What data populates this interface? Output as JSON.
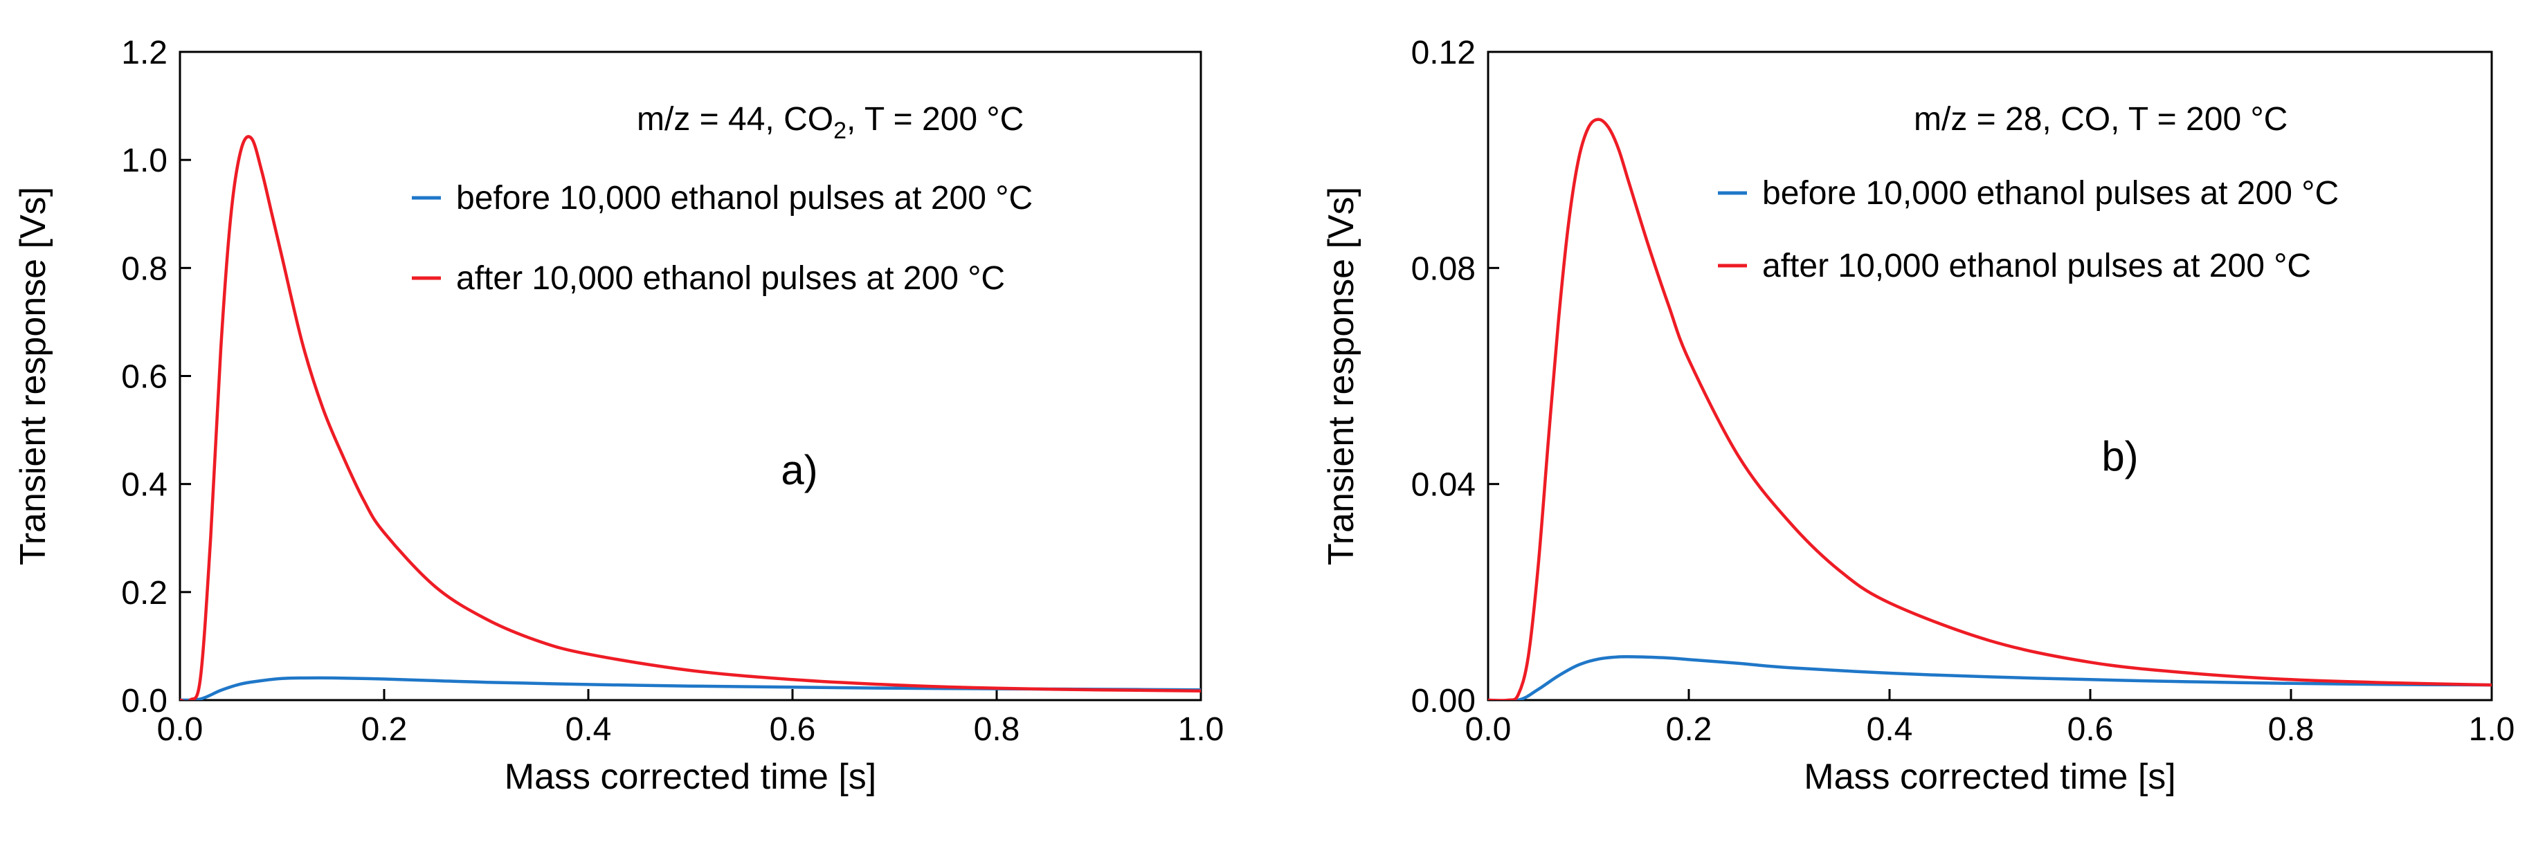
{
  "chart_data": [
    {
      "type": "line",
      "panel_label": "a)",
      "annotation": {
        "prefix": "m/z = 44, CO",
        "subscript": "2",
        "suffix": ", T = 200 °C"
      },
      "xlabel": "Mass corrected time [s]",
      "ylabel": "Transient response [Vs]",
      "xlim": [
        0,
        1.0
      ],
      "ylim": [
        0,
        1.2
      ],
      "xticks": [
        "0.0",
        "0.2",
        "0.4",
        "0.6",
        "0.8",
        "1.0"
      ],
      "yticks": [
        "0.0",
        "0.2",
        "0.4",
        "0.6",
        "0.8",
        "1.0",
        "1.2"
      ],
      "grid": false,
      "legend_position": "top-right",
      "series": [
        {
          "name": "before 10,000 ethanol pulses at 200 °C",
          "color": "#1f77c8",
          "x": [
            0.0,
            0.02,
            0.04,
            0.06,
            0.08,
            0.1,
            0.12,
            0.15,
            0.2,
            0.25,
            0.3,
            0.4,
            0.5,
            0.6,
            0.7,
            0.8,
            0.9,
            1.0
          ],
          "y": [
            0.0,
            0.002,
            0.018,
            0.03,
            0.036,
            0.04,
            0.041,
            0.041,
            0.039,
            0.036,
            0.033,
            0.029,
            0.026,
            0.024,
            0.022,
            0.021,
            0.02,
            0.019
          ]
        },
        {
          "name": "after 10,000 ethanol pulses at 200 °C",
          "color": "#ee1c25",
          "x": [
            0.0,
            0.01,
            0.02,
            0.03,
            0.04,
            0.05,
            0.06,
            0.07,
            0.08,
            0.09,
            0.1,
            0.12,
            0.14,
            0.16,
            0.18,
            0.2,
            0.25,
            0.3,
            0.35,
            0.4,
            0.5,
            0.6,
            0.7,
            0.8,
            0.9,
            1.0
          ],
          "y": [
            0.0,
            0.0,
            0.04,
            0.3,
            0.65,
            0.9,
            1.02,
            1.04,
            0.98,
            0.9,
            0.82,
            0.66,
            0.54,
            0.45,
            0.37,
            0.31,
            0.21,
            0.15,
            0.11,
            0.085,
            0.055,
            0.038,
            0.028,
            0.022,
            0.019,
            0.017
          ]
        }
      ]
    },
    {
      "type": "line",
      "panel_label": "b)",
      "annotation": {
        "prefix": "m/z = 28, CO, T = 200 °C",
        "subscript": "",
        "suffix": ""
      },
      "xlabel": "Mass corrected time [s]",
      "ylabel": "Transient response [Vs]",
      "xlim": [
        0,
        1.0
      ],
      "ylim": [
        0,
        0.12
      ],
      "xticks": [
        "0.0",
        "0.2",
        "0.4",
        "0.6",
        "0.8",
        "1.0"
      ],
      "yticks": [
        "0.00",
        "0.04",
        "0.08",
        "0.12"
      ],
      "grid": false,
      "legend_position": "top-right",
      "series": [
        {
          "name": "before 10,000 ethanol pulses at 200 °C",
          "color": "#1f77c8",
          "x": [
            0.0,
            0.03,
            0.05,
            0.07,
            0.09,
            0.11,
            0.13,
            0.15,
            0.18,
            0.2,
            0.25,
            0.3,
            0.4,
            0.5,
            0.6,
            0.7,
            0.8,
            0.9,
            1.0
          ],
          "y": [
            0.0,
            0.0,
            0.002,
            0.0045,
            0.0065,
            0.0076,
            0.008,
            0.008,
            0.0078,
            0.0075,
            0.0068,
            0.006,
            0.005,
            0.0043,
            0.0038,
            0.0034,
            0.0031,
            0.0029,
            0.0028
          ]
        },
        {
          "name": "after 10,000 ethanol pulses at 200 °C",
          "color": "#ee1c25",
          "x": [
            0.0,
            0.02,
            0.03,
            0.04,
            0.05,
            0.06,
            0.07,
            0.08,
            0.09,
            0.1,
            0.11,
            0.12,
            0.13,
            0.14,
            0.16,
            0.18,
            0.2,
            0.25,
            0.3,
            0.35,
            0.4,
            0.5,
            0.6,
            0.7,
            0.8,
            0.9,
            1.0
          ],
          "y": [
            0.0,
            0.0,
            0.001,
            0.008,
            0.025,
            0.048,
            0.07,
            0.088,
            0.1,
            0.106,
            0.1075,
            0.106,
            0.102,
            0.096,
            0.084,
            0.073,
            0.063,
            0.045,
            0.033,
            0.024,
            0.018,
            0.011,
            0.007,
            0.005,
            0.0038,
            0.0032,
            0.0028
          ]
        }
      ]
    }
  ]
}
